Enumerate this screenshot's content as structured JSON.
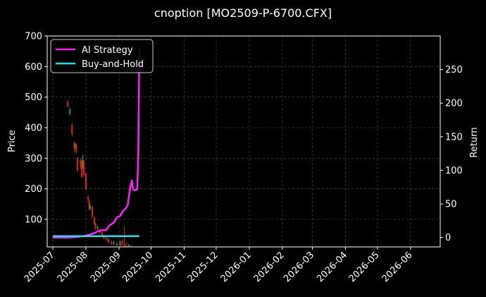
{
  "chart_data": {
    "type": "line",
    "title": "cnoption [MO2509-P-6700.CFX]",
    "xlabel": "",
    "ylabel_left": "Price",
    "ylabel_right": "Return",
    "grid": true,
    "legend_position": "top-left",
    "x_ticks": [
      "2025-07",
      "2025-08",
      "2025-09",
      "2025-10",
      "2025-11",
      "2025-12",
      "2026-01",
      "2026-02",
      "2026-03",
      "2026-04",
      "2026-05",
      "2026-06"
    ],
    "left_axis": {
      "ylim": [
        10,
        700
      ],
      "ticks": [
        100,
        200,
        300,
        400,
        500,
        600,
        700
      ]
    },
    "right_axis": {
      "ylim": [
        -14,
        300
      ],
      "ticks": [
        0,
        50,
        100,
        150,
        200,
        250
      ]
    },
    "colors": {
      "strategy": "#ff1fff",
      "buyhold": "#1fe0e8",
      "up": "#1fa81f",
      "down": "#e02020",
      "grid": "#555555",
      "axes": "#ffffff"
    },
    "series": [
      {
        "name": "AI Strategy",
        "axis": "right",
        "color": "#ff1fff",
        "x": [
          "2025-07-01",
          "2025-07-15",
          "2025-07-25",
          "2025-08-01",
          "2025-08-08",
          "2025-08-12",
          "2025-08-16",
          "2025-08-20",
          "2025-08-23",
          "2025-08-27",
          "2025-08-30",
          "2025-09-02",
          "2025-09-05",
          "2025-09-07",
          "2025-09-09",
          "2025-09-11",
          "2025-09-12",
          "2025-09-13",
          "2025-09-14",
          "2025-09-16",
          "2025-09-18",
          "2025-09-19",
          "2025-09-20"
        ],
        "y": [
          0,
          0,
          1,
          3,
          6,
          9,
          11,
          11,
          18,
          22,
          30,
          32,
          40,
          43,
          47,
          70,
          78,
          85,
          72,
          70,
          72,
          120,
          283
        ]
      },
      {
        "name": "Buy-and-Hold",
        "axis": "right",
        "color": "#1fe0e8",
        "x": [
          "2025-07-01",
          "2025-09-20"
        ],
        "y": [
          2,
          2
        ]
      }
    ],
    "candles": [
      {
        "date": "2025-07-15",
        "open": 485,
        "close": 470,
        "high": 490,
        "low": 465
      },
      {
        "date": "2025-07-17",
        "open": 445,
        "close": 460,
        "high": 465,
        "low": 440
      },
      {
        "date": "2025-07-19",
        "open": 410,
        "close": 380,
        "high": 415,
        "low": 372
      },
      {
        "date": "2025-07-21",
        "open": 350,
        "close": 335,
        "high": 355,
        "low": 320
      },
      {
        "date": "2025-07-22",
        "open": 335,
        "close": 345,
        "high": 350,
        "low": 328
      },
      {
        "date": "2025-07-23",
        "open": 345,
        "close": 320,
        "high": 348,
        "low": 315
      },
      {
        "date": "2025-07-24",
        "open": 300,
        "close": 262,
        "high": 305,
        "low": 255
      },
      {
        "date": "2025-07-27",
        "open": 295,
        "close": 280,
        "high": 300,
        "low": 265
      },
      {
        "date": "2025-07-28",
        "open": 280,
        "close": 240,
        "high": 290,
        "low": 235
      },
      {
        "date": "2025-07-29",
        "open": 270,
        "close": 295,
        "high": 310,
        "low": 265
      },
      {
        "date": "2025-07-30",
        "open": 290,
        "close": 245,
        "high": 295,
        "low": 240
      },
      {
        "date": "2025-08-01",
        "open": 250,
        "close": 200,
        "high": 255,
        "low": 195
      },
      {
        "date": "2025-08-03",
        "open": 175,
        "close": 165,
        "high": 180,
        "low": 160
      },
      {
        "date": "2025-08-04",
        "open": 160,
        "close": 135,
        "high": 165,
        "low": 130
      },
      {
        "date": "2025-08-05",
        "open": 135,
        "close": 145,
        "high": 150,
        "low": 130
      },
      {
        "date": "2025-08-07",
        "open": 140,
        "close": 110,
        "high": 145,
        "low": 105
      },
      {
        "date": "2025-08-09",
        "open": 105,
        "close": 85,
        "high": 110,
        "low": 80
      },
      {
        "date": "2025-08-10",
        "open": 85,
        "close": 70,
        "high": 90,
        "low": 65
      },
      {
        "date": "2025-08-12",
        "open": 70,
        "close": 75,
        "high": 80,
        "low": 60
      },
      {
        "date": "2025-08-14",
        "open": 65,
        "close": 58,
        "high": 70,
        "low": 52
      },
      {
        "date": "2025-08-16",
        "open": 58,
        "close": 48,
        "high": 62,
        "low": 42
      },
      {
        "date": "2025-08-18",
        "open": 48,
        "close": 40,
        "high": 52,
        "low": 35
      },
      {
        "date": "2025-08-20",
        "open": 40,
        "close": 35,
        "high": 45,
        "low": 30
      },
      {
        "date": "2025-08-22",
        "open": 36,
        "close": 26,
        "high": 40,
        "low": 22
      },
      {
        "date": "2025-08-25",
        "open": 26,
        "close": 20,
        "high": 30,
        "low": 16
      },
      {
        "date": "2025-08-27",
        "open": 20,
        "close": 26,
        "high": 30,
        "low": 15
      },
      {
        "date": "2025-08-30",
        "open": 22,
        "close": 15,
        "high": 27,
        "low": 12
      },
      {
        "date": "2025-09-02",
        "open": 15,
        "close": 28,
        "high": 32,
        "low": 12
      },
      {
        "date": "2025-09-04",
        "open": 30,
        "close": 18,
        "high": 34,
        "low": 14
      },
      {
        "date": "2025-09-06",
        "open": 18,
        "close": 12,
        "high": 75,
        "low": 10
      },
      {
        "date": "2025-09-08",
        "open": 14,
        "close": 12,
        "high": 25,
        "low": 10
      },
      {
        "date": "2025-09-10",
        "open": 12,
        "close": 16,
        "high": 20,
        "low": 10
      },
      {
        "date": "2025-09-12",
        "open": 14,
        "close": 11,
        "high": 17,
        "low": 10
      }
    ]
  }
}
